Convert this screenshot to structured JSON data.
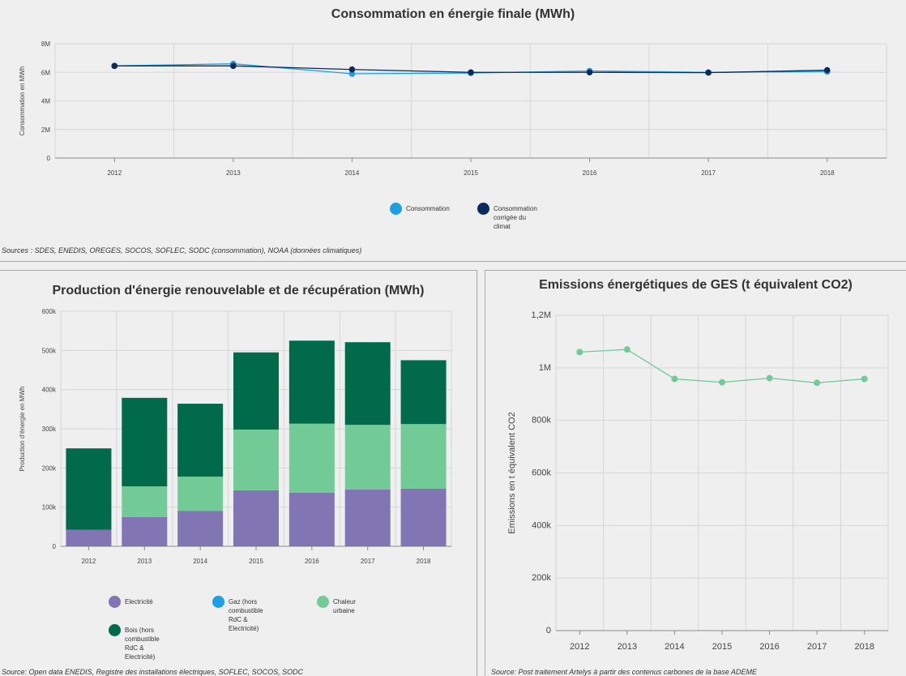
{
  "chart_data": [
    {
      "type": "line",
      "title": "Consommation en énergie finale (MWh)",
      "ylabel": "Consommation en MWh",
      "xlabel": "",
      "categories": [
        "2012",
        "2013",
        "2014",
        "2015",
        "2016",
        "2017",
        "2018"
      ],
      "ylim": [
        0,
        8000000
      ],
      "yticks": [
        "0",
        "2M",
        "4M",
        "6M",
        "8M"
      ],
      "ytick_values": [
        0,
        2000000,
        4000000,
        6000000,
        8000000
      ],
      "grid": true,
      "legend_position": "bottom",
      "series": [
        {
          "name": "Consommation",
          "color": "#1ba1e2",
          "values": [
            6450000,
            6600000,
            5900000,
            5950000,
            6100000,
            6000000,
            6050000
          ]
        },
        {
          "name": "Consommation corrigée du climat",
          "color": "#0b2b5c",
          "values": [
            6450000,
            6450000,
            6200000,
            6000000,
            6000000,
            5980000,
            6150000
          ]
        }
      ],
      "source": "Sources : SDES, ENEDIS, OREGES, SOCOS, SOFLEC, SODC (consommation), NOAA (données climatiques)"
    },
    {
      "type": "bar",
      "stacked": true,
      "title": "Production d'énergie renouvelable et de récupération (MWh)",
      "ylabel": "Production d'énergie en MWh",
      "xlabel": "",
      "categories": [
        "2012",
        "2013",
        "2014",
        "2015",
        "2016",
        "2017",
        "2018"
      ],
      "ylim": [
        0,
        600000
      ],
      "yticks": [
        "0",
        "100k",
        "200k",
        "300k",
        "400k",
        "500k",
        "600k"
      ],
      "ytick_values": [
        0,
        100000,
        200000,
        300000,
        400000,
        500000,
        600000
      ],
      "grid": true,
      "legend_position": "bottom",
      "series": [
        {
          "name": "Electricité",
          "color": "#8275b3",
          "values": [
            42000,
            75000,
            90000,
            143000,
            137000,
            145000,
            147000
          ]
        },
        {
          "name": "Gaz (hors combustible RdC & Electricité)",
          "color": "#1ba1e2",
          "values": [
            0,
            0,
            0,
            0,
            0,
            0,
            0
          ]
        },
        {
          "name": "Chaleur urbaine",
          "color": "#72cb96",
          "values": [
            0,
            78000,
            88000,
            155000,
            176000,
            165000,
            165000
          ]
        },
        {
          "name": "Bois (hors combustible RdC & Electricité)",
          "color": "#006a4a",
          "values": [
            208000,
            226000,
            186000,
            197000,
            212000,
            211000,
            163000
          ]
        }
      ],
      "legend_labels": [
        [
          "Electricité"
        ],
        [
          "Gaz (hors combustible",
          "RdC & Electricité)"
        ],
        [
          "Chaleur urbaine"
        ],
        [
          "Bois (hors combustible",
          "RdC & Electricité)"
        ]
      ],
      "source": "Source: Open data ENEDIS, Registre des installations électriques, SOFLEC, SOCOS, SODC"
    },
    {
      "type": "line",
      "title": "Emissions énergétiques de GES (t équivalent CO2)",
      "ylabel": "Emissions en t équivalent CO2",
      "xlabel": "",
      "categories": [
        "2012",
        "2013",
        "2014",
        "2015",
        "2016",
        "2017",
        "2018"
      ],
      "ylim": [
        0,
        1200000
      ],
      "yticks": [
        "0",
        "200k",
        "400k",
        "600k",
        "800k",
        "1M",
        "1,2M"
      ],
      "ytick_values": [
        0,
        200000,
        400000,
        600000,
        800000,
        1000000,
        1200000
      ],
      "grid": true,
      "series": [
        {
          "name": "",
          "color": "#72cb96",
          "values": [
            1060000,
            1070000,
            958000,
            945000,
            961000,
            943000,
            958000
          ]
        }
      ],
      "source": "Source: Post traitement Artelys à partir des contenus carbones de la base ADEME"
    }
  ],
  "legend_top": [
    {
      "lines": [
        "Consommation"
      ],
      "color": "#1ba1e2"
    },
    {
      "lines": [
        "Consommation",
        "corrigée du climat"
      ],
      "color": "#0b2b5c"
    }
  ]
}
